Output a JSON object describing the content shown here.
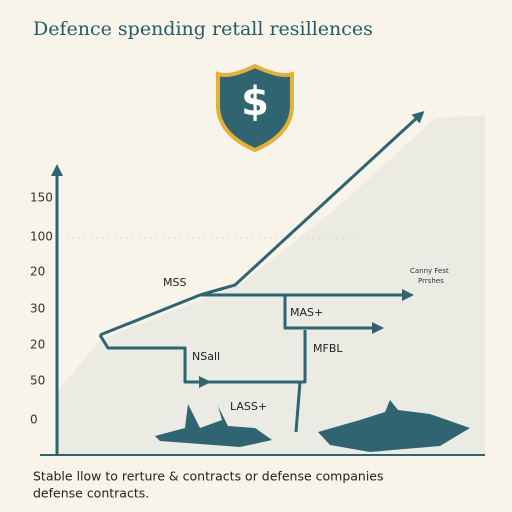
{
  "header": {
    "title": "Defence spending retall resillences",
    "symbol": "$"
  },
  "axis_labels": [
    "150",
    "100",
    "20",
    "30",
    "20",
    "50",
    "0"
  ],
  "labels": [
    "MSS",
    "MAS+",
    "NSall",
    "MFBL",
    "LASS+"
  ],
  "note": [
    "Canny Fest",
    "Prrshes"
  ],
  "caption": [
    "Stable llow to rerture & contracts or defense companies",
    "defense contracts."
  ]
}
